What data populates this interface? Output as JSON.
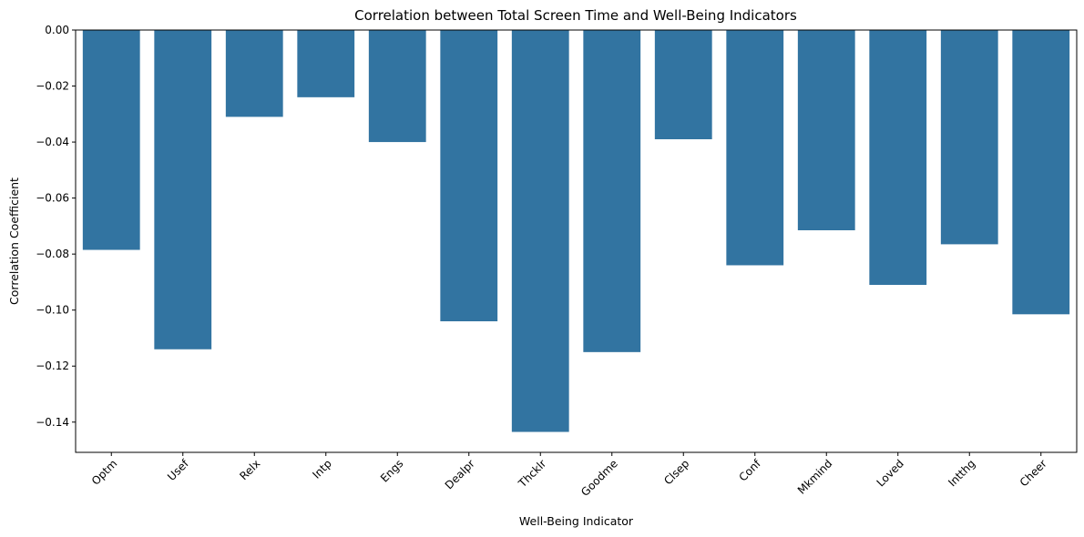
{
  "chart_data": {
    "type": "bar",
    "title": "Correlation between Total Screen Time and Well-Being Indicators",
    "xlabel": "Well-Being Indicator",
    "ylabel": "Correlation Coefficient",
    "categories": [
      "Optm",
      "Usef",
      "Relx",
      "Intp",
      "Engs",
      "Dealpr",
      "Thcklr",
      "Goodme",
      "Clsep",
      "Conf",
      "Mkmind",
      "Loved",
      "Intthg",
      "Cheer"
    ],
    "values": [
      -0.0785,
      -0.114,
      -0.031,
      -0.024,
      -0.04,
      -0.104,
      -0.1435,
      -0.115,
      -0.039,
      -0.084,
      -0.0715,
      -0.091,
      -0.0765,
      -0.1015
    ],
    "ylim": [
      -0.1508,
      0
    ],
    "yticks": [
      "0.00",
      "−0.02",
      "−0.04",
      "−0.06",
      "−0.08",
      "−0.10",
      "−0.12",
      "−0.14"
    ],
    "ytick_values": [
      0,
      -0.02,
      -0.04,
      -0.06,
      -0.08,
      -0.1,
      -0.12,
      -0.14
    ],
    "bar_color": "#3274a1",
    "grid": false,
    "xtick_rotation": 45
  }
}
